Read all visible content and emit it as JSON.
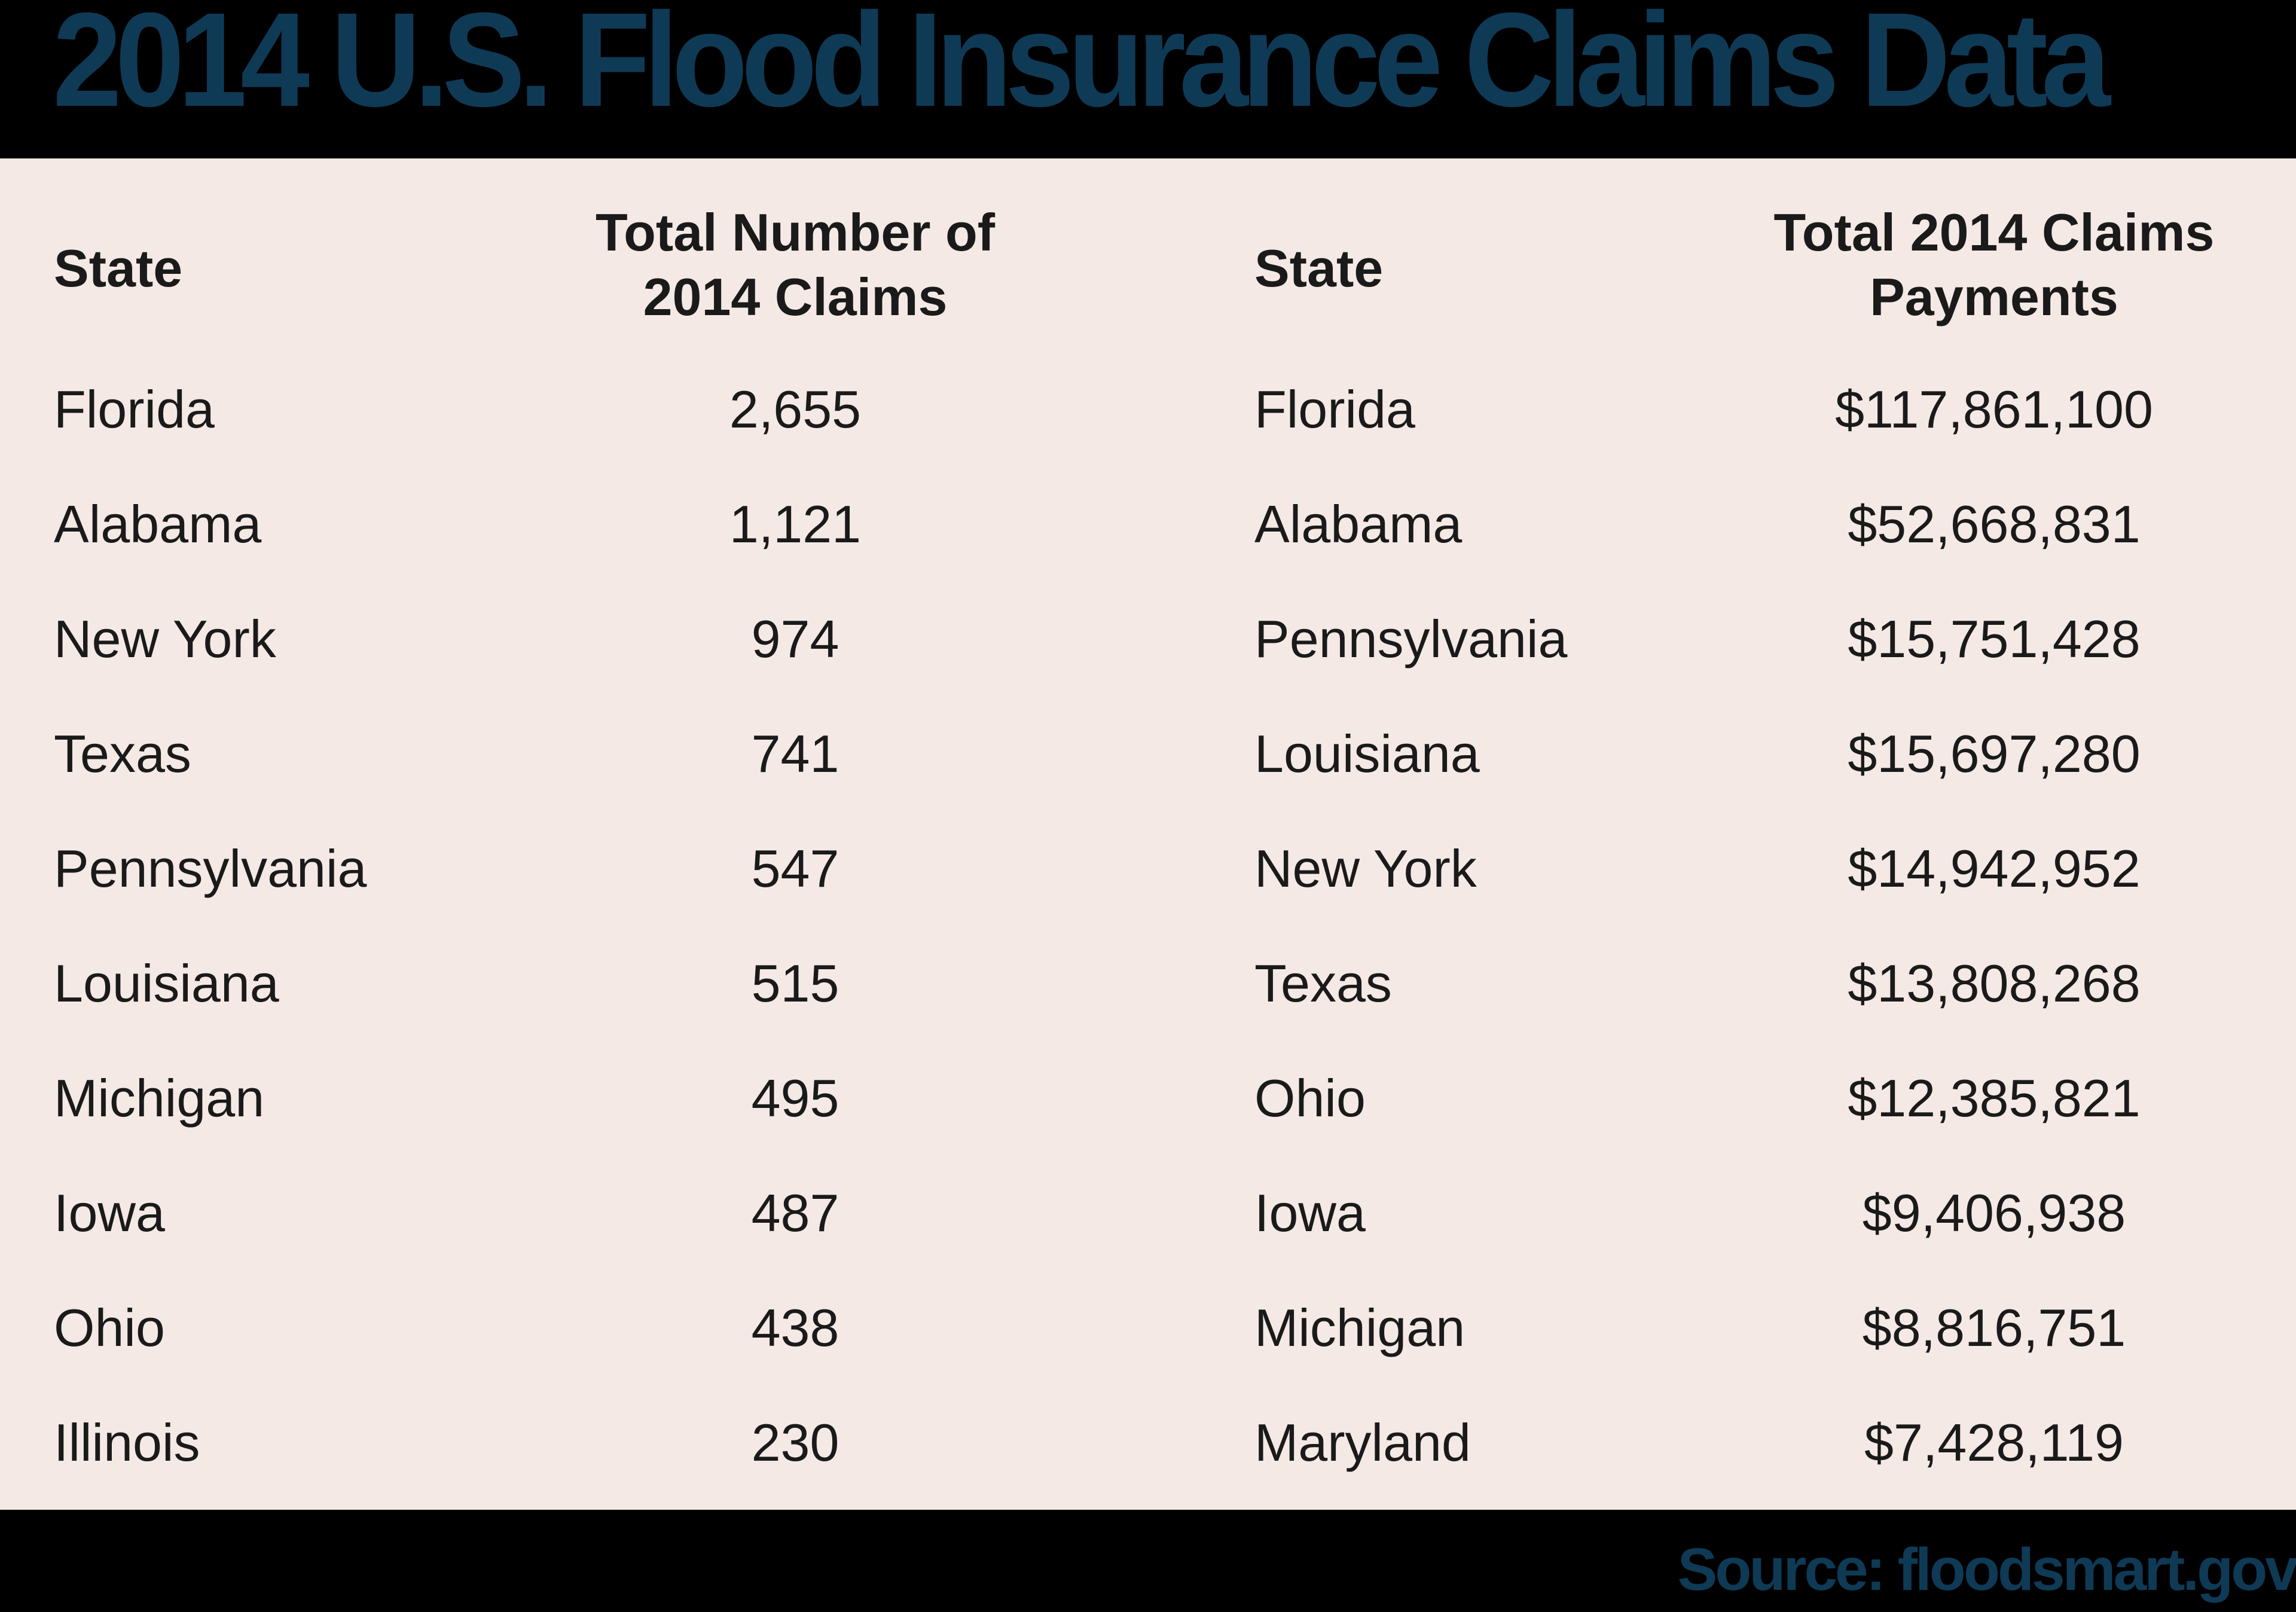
{
  "title": "2014 U.S. Flood Insurance Claims Data",
  "colors": {
    "title": "#0f3a56",
    "panel_bg": "#f4e9e4",
    "band_bg": "#000000",
    "text": "#1a1a1a"
  },
  "table_left": {
    "headers": [
      "State",
      "Total Number of 2014 Claims"
    ],
    "header_lines": {
      "col2_line1": "Total Number of",
      "col2_line2": "2014 Claims"
    },
    "rows": [
      {
        "state": "Florida",
        "value": "2,655"
      },
      {
        "state": "Alabama",
        "value": "1,121"
      },
      {
        "state": "New York",
        "value": "974"
      },
      {
        "state": "Texas",
        "value": "741"
      },
      {
        "state": "Pennsylvania",
        "value": "547"
      },
      {
        "state": "Louisiana",
        "value": "515"
      },
      {
        "state": "Michigan",
        "value": "495"
      },
      {
        "state": "Iowa",
        "value": "487"
      },
      {
        "state": "Ohio",
        "value": "438"
      },
      {
        "state": "Illinois",
        "value": "230"
      }
    ]
  },
  "table_right": {
    "headers": [
      "State",
      "Total 2014 Claims Payments"
    ],
    "header_lines": {
      "col2_line1": "Total 2014 Claims",
      "col2_line2": "Payments"
    },
    "rows": [
      {
        "state": "Florida",
        "value": "$117,861,100"
      },
      {
        "state": "Alabama",
        "value": "$52,668,831"
      },
      {
        "state": "Pennsylvania",
        "value": "$15,751,428"
      },
      {
        "state": "Louisiana",
        "value": "$15,697,280"
      },
      {
        "state": "New York",
        "value": "$14,942,952"
      },
      {
        "state": "Texas",
        "value": "$13,808,268"
      },
      {
        "state": "Ohio",
        "value": "$12,385,821"
      },
      {
        "state": "Iowa",
        "value": "$9,406,938"
      },
      {
        "state": "Michigan",
        "value": "$8,816,751"
      },
      {
        "state": "Maryland",
        "value": "$7,428,119"
      }
    ]
  },
  "footer": {
    "source": "Source: floodsmart.gov"
  }
}
